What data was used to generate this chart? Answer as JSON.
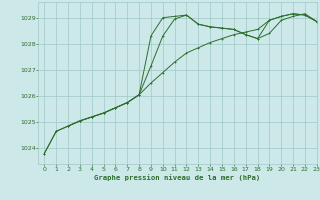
{
  "title": "Graphe pression niveau de la mer (hPa)",
  "bg_color": "#cce8e8",
  "grid_color": "#a0c8c8",
  "line_color": "#2d6e2d",
  "xlim": [
    -0.5,
    23
  ],
  "ylim": [
    1023.4,
    1029.6
  ],
  "yticks": [
    1024,
    1025,
    1026,
    1027,
    1028,
    1029
  ],
  "xticks": [
    0,
    1,
    2,
    3,
    4,
    5,
    6,
    7,
    8,
    9,
    10,
    11,
    12,
    13,
    14,
    15,
    16,
    17,
    18,
    19,
    20,
    21,
    22,
    23
  ],
  "line1_x": [
    0,
    1,
    2,
    3,
    4,
    5,
    6,
    7,
    8,
    9,
    10,
    11,
    12,
    13,
    14,
    15,
    16,
    17,
    18,
    19,
    20,
    21,
    22,
    23
  ],
  "line1_y": [
    1023.8,
    1024.65,
    1024.85,
    1025.05,
    1025.2,
    1025.35,
    1025.55,
    1025.75,
    1026.05,
    1028.3,
    1029.0,
    1029.05,
    1029.1,
    1028.75,
    1028.65,
    1028.6,
    1028.55,
    1028.35,
    1028.2,
    1028.9,
    1029.05,
    1029.15,
    1029.1,
    1028.85
  ],
  "line2_x": [
    0,
    1,
    2,
    3,
    4,
    5,
    6,
    7,
    8,
    9,
    10,
    11,
    12,
    13,
    14,
    15,
    16,
    17,
    18,
    19,
    20,
    21,
    22,
    23
  ],
  "line2_y": [
    1023.8,
    1024.65,
    1024.85,
    1025.05,
    1025.2,
    1025.35,
    1025.55,
    1025.75,
    1026.05,
    1026.5,
    1026.9,
    1027.3,
    1027.65,
    1027.85,
    1028.05,
    1028.2,
    1028.35,
    1028.45,
    1028.55,
    1028.9,
    1029.05,
    1029.15,
    1029.1,
    1028.85
  ],
  "line3_x": [
    2,
    3,
    4,
    5,
    6,
    7,
    8,
    9,
    10,
    11,
    12,
    13,
    14,
    15,
    16,
    17,
    18,
    19,
    20,
    21,
    22,
    23
  ],
  "line3_y": [
    1024.85,
    1025.05,
    1025.2,
    1025.35,
    1025.55,
    1025.75,
    1026.05,
    1027.15,
    1028.3,
    1028.95,
    1029.1,
    1028.75,
    1028.65,
    1028.6,
    1028.55,
    1028.35,
    1028.2,
    1028.4,
    1028.9,
    1029.05,
    1029.15,
    1028.85
  ]
}
